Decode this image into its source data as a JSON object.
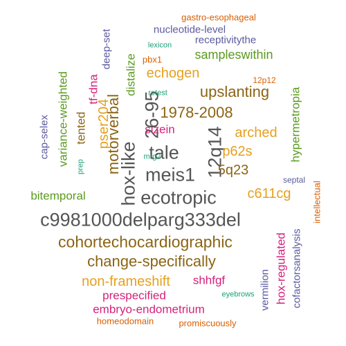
{
  "colors": {
    "gray": "#555555",
    "brown": "#8b6414",
    "orange": "#e6a01e",
    "olive": "#5a9a1e",
    "purple": "#5a5aa0",
    "magenta": "#d4217a",
    "red": "#d95f02",
    "teal": "#1b9e77"
  },
  "words": [
    {
      "text": "c9981000delparg333del",
      "color": "gray"
    },
    {
      "text": "cohortechocardiographic",
      "color": "brown"
    },
    {
      "text": "ecotropic",
      "color": "gray"
    },
    {
      "text": "meis1",
      "color": "gray"
    },
    {
      "text": "hox-like",
      "color": "gray"
    },
    {
      "text": "12q14",
      "color": "gray"
    },
    {
      "text": "tale",
      "color": "gray"
    },
    {
      "text": "26-95",
      "color": "gray"
    },
    {
      "text": "change-specifically",
      "color": "brown"
    },
    {
      "text": "1978-2008",
      "color": "brown"
    },
    {
      "text": "motorverbal",
      "color": "brown"
    },
    {
      "text": "upslanting",
      "color": "brown"
    },
    {
      "text": "echogen",
      "color": "orange"
    },
    {
      "text": "5q23",
      "color": "brown"
    },
    {
      "text": "p62s",
      "color": "orange"
    },
    {
      "text": "c611cg",
      "color": "orange"
    },
    {
      "text": "arched",
      "color": "orange"
    },
    {
      "text": "non-frameshift",
      "color": "orange"
    },
    {
      "text": "pser204",
      "color": "orange"
    },
    {
      "text": "sampleswithin",
      "color": "olive"
    },
    {
      "text": "distalize",
      "color": "olive"
    },
    {
      "text": "variance-weighted",
      "color": "olive"
    },
    {
      "text": "bitemporal",
      "color": "olive"
    },
    {
      "text": "hypermetropia",
      "color": "olive"
    },
    {
      "text": "tented",
      "color": "brown"
    },
    {
      "text": "tf-dna",
      "color": "magenta"
    },
    {
      "text": "sizein",
      "color": "magenta"
    },
    {
      "text": "shhfgf",
      "color": "magenta"
    },
    {
      "text": "prespecified",
      "color": "magenta"
    },
    {
      "text": "embryo-endometrium",
      "color": "magenta"
    },
    {
      "text": "hox-regulated",
      "color": "magenta"
    },
    {
      "text": "cofactorsanalysis",
      "color": "purple"
    },
    {
      "text": "vermilion",
      "color": "purple"
    },
    {
      "text": "cap-selex",
      "color": "purple"
    },
    {
      "text": "nucleotide-level",
      "color": "purple"
    },
    {
      "text": "receptivitythe",
      "color": "purple"
    },
    {
      "text": "deep-set",
      "color": "purple"
    },
    {
      "text": "septal",
      "color": "purple"
    },
    {
      "text": "gastro-esophageal",
      "color": "red"
    },
    {
      "text": "pbx1",
      "color": "red"
    },
    {
      "text": "12p12",
      "color": "red"
    },
    {
      "text": "intellectual",
      "color": "red"
    },
    {
      "text": "homeodomain",
      "color": "red"
    },
    {
      "text": "promiscuously",
      "color": "red"
    },
    {
      "text": "lexicon",
      "color": "teal"
    },
    {
      "text": "retest",
      "color": "teal"
    },
    {
      "text": "mrg2",
      "color": "teal"
    },
    {
      "text": "prep",
      "color": "teal"
    },
    {
      "text": "eyebrows",
      "color": "teal"
    }
  ]
}
